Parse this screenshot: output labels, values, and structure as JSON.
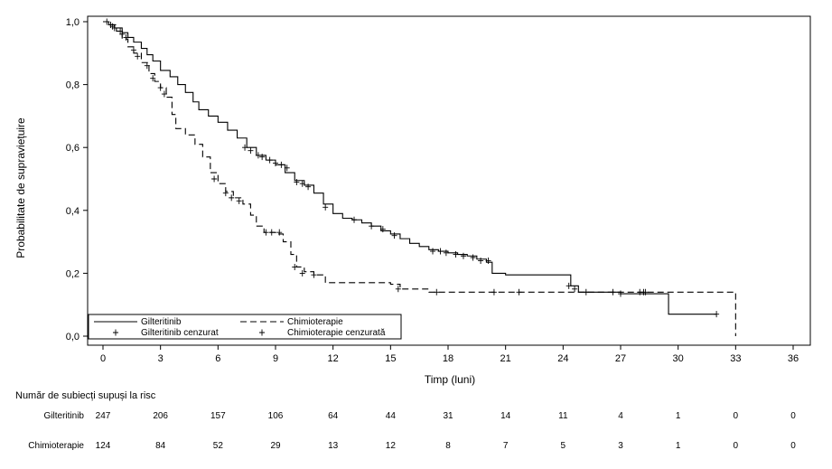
{
  "chart_data": {
    "type": "line",
    "subtype": "kaplan-meier",
    "title": "",
    "xlabel": "Timp (luni)",
    "ylabel": "Probabilitate de supraviețuire",
    "xlim": [
      0,
      36
    ],
    "ylim": [
      0,
      1
    ],
    "x_ticks": [
      0,
      3,
      6,
      9,
      12,
      15,
      18,
      21,
      24,
      27,
      30,
      33,
      36
    ],
    "y_ticks": [
      {
        "value": 0.0,
        "label": "0,0"
      },
      {
        "value": 0.2,
        "label": "0,2"
      },
      {
        "value": 0.4,
        "label": "0,4"
      },
      {
        "value": 0.6,
        "label": "0,6"
      },
      {
        "value": 0.8,
        "label": "0,8"
      },
      {
        "value": 1.0,
        "label": "1,0"
      }
    ],
    "grid": false,
    "legend_position": "bottom-left",
    "legend": {
      "line_gilt": "Gilteritinib",
      "line_chemo": "Chimioterapie",
      "cens_gilt": "Gilteritinib cenzurat",
      "cens_chemo": "Chimioterapie cenzurată"
    },
    "series": [
      {
        "name": "Gilteritinib",
        "style": "solid",
        "color": "#000000",
        "points": [
          [
            0,
            1.0
          ],
          [
            0.3,
            0.99
          ],
          [
            0.6,
            0.98
          ],
          [
            1.0,
            0.965
          ],
          [
            1.3,
            0.95
          ],
          [
            1.6,
            0.935
          ],
          [
            2.0,
            0.915
          ],
          [
            2.3,
            0.895
          ],
          [
            2.6,
            0.875
          ],
          [
            3.0,
            0.845
          ],
          [
            3.5,
            0.825
          ],
          [
            3.9,
            0.8
          ],
          [
            4.3,
            0.775
          ],
          [
            4.7,
            0.745
          ],
          [
            5.0,
            0.72
          ],
          [
            5.5,
            0.7
          ],
          [
            6.0,
            0.68
          ],
          [
            6.5,
            0.655
          ],
          [
            7.0,
            0.63
          ],
          [
            7.5,
            0.6
          ],
          [
            8.0,
            0.575
          ],
          [
            8.5,
            0.56
          ],
          [
            9.0,
            0.545
          ],
          [
            9.5,
            0.52
          ],
          [
            10.0,
            0.495
          ],
          [
            10.5,
            0.48
          ],
          [
            11.0,
            0.455
          ],
          [
            11.5,
            0.42
          ],
          [
            12.0,
            0.39
          ],
          [
            12.5,
            0.375
          ],
          [
            13.0,
            0.37
          ],
          [
            13.5,
            0.36
          ],
          [
            14.0,
            0.35
          ],
          [
            14.5,
            0.335
          ],
          [
            15.0,
            0.325
          ],
          [
            15.5,
            0.31
          ],
          [
            16.0,
            0.295
          ],
          [
            16.5,
            0.285
          ],
          [
            17.0,
            0.275
          ],
          [
            17.5,
            0.27
          ],
          [
            18.0,
            0.265
          ],
          [
            18.5,
            0.26
          ],
          [
            19.0,
            0.255
          ],
          [
            19.5,
            0.245
          ],
          [
            20.0,
            0.235
          ],
          [
            20.3,
            0.2
          ],
          [
            21.0,
            0.195
          ],
          [
            22.0,
            0.195
          ],
          [
            23.0,
            0.195
          ],
          [
            24.2,
            0.195
          ],
          [
            24.4,
            0.16
          ],
          [
            24.8,
            0.14
          ],
          [
            26.0,
            0.14
          ],
          [
            27.0,
            0.135
          ],
          [
            28.0,
            0.135
          ],
          [
            29.5,
            0.135
          ],
          [
            29.5,
            0.07
          ],
          [
            32.0,
            0.07
          ]
        ],
        "censored": [
          [
            0.2,
            1.0
          ],
          [
            0.5,
            0.985
          ],
          [
            0.9,
            0.97
          ],
          [
            7.4,
            0.6
          ],
          [
            7.7,
            0.59
          ],
          [
            8.1,
            0.575
          ],
          [
            8.3,
            0.57
          ],
          [
            8.7,
            0.56
          ],
          [
            9.0,
            0.55
          ],
          [
            9.3,
            0.545
          ],
          [
            9.6,
            0.535
          ],
          [
            10.1,
            0.49
          ],
          [
            10.4,
            0.485
          ],
          [
            10.7,
            0.475
          ],
          [
            11.6,
            0.41
          ],
          [
            13.1,
            0.37
          ],
          [
            14.0,
            0.35
          ],
          [
            14.6,
            0.34
          ],
          [
            15.2,
            0.32
          ],
          [
            17.2,
            0.27
          ],
          [
            17.6,
            0.27
          ],
          [
            17.9,
            0.265
          ],
          [
            18.4,
            0.26
          ],
          [
            18.8,
            0.255
          ],
          [
            19.3,
            0.25
          ],
          [
            19.7,
            0.24
          ],
          [
            20.1,
            0.24
          ],
          [
            24.3,
            0.16
          ],
          [
            24.6,
            0.15
          ],
          [
            27.0,
            0.135
          ],
          [
            28.0,
            0.14
          ],
          [
            28.3,
            0.14
          ],
          [
            32.0,
            0.07
          ]
        ]
      },
      {
        "name": "Chimioterapie",
        "style": "dashed",
        "color": "#000000",
        "points": [
          [
            0,
            1.0
          ],
          [
            0.4,
            0.99
          ],
          [
            0.7,
            0.97
          ],
          [
            1.0,
            0.945
          ],
          [
            1.3,
            0.92
          ],
          [
            1.6,
            0.9
          ],
          [
            2.0,
            0.87
          ],
          [
            2.4,
            0.835
          ],
          [
            2.7,
            0.81
          ],
          [
            3.0,
            0.79
          ],
          [
            3.3,
            0.76
          ],
          [
            3.6,
            0.705
          ],
          [
            3.8,
            0.66
          ],
          [
            4.3,
            0.64
          ],
          [
            4.8,
            0.61
          ],
          [
            5.2,
            0.57
          ],
          [
            5.6,
            0.52
          ],
          [
            6.0,
            0.485
          ],
          [
            6.4,
            0.46
          ],
          [
            6.8,
            0.44
          ],
          [
            7.3,
            0.42
          ],
          [
            7.7,
            0.385
          ],
          [
            8.0,
            0.35
          ],
          [
            8.4,
            0.33
          ],
          [
            9.0,
            0.325
          ],
          [
            9.4,
            0.3
          ],
          [
            9.8,
            0.26
          ],
          [
            10.1,
            0.22
          ],
          [
            10.5,
            0.205
          ],
          [
            11.0,
            0.195
          ],
          [
            11.6,
            0.17
          ],
          [
            12.5,
            0.17
          ],
          [
            13.5,
            0.17
          ],
          [
            15.0,
            0.165
          ],
          [
            15.5,
            0.15
          ],
          [
            16.6,
            0.15
          ],
          [
            17.0,
            0.14
          ],
          [
            18.0,
            0.14
          ],
          [
            21.0,
            0.14
          ],
          [
            24.0,
            0.14
          ],
          [
            27.0,
            0.14
          ],
          [
            30.0,
            0.14
          ],
          [
            33.0,
            0.14
          ],
          [
            33.0,
            0.0
          ]
        ],
        "censored": [
          [
            0.4,
            0.99
          ],
          [
            0.6,
            0.98
          ],
          [
            1.0,
            0.96
          ],
          [
            1.2,
            0.95
          ],
          [
            1.6,
            0.91
          ],
          [
            1.8,
            0.89
          ],
          [
            2.3,
            0.86
          ],
          [
            2.6,
            0.82
          ],
          [
            3.0,
            0.79
          ],
          [
            3.2,
            0.77
          ],
          [
            5.8,
            0.5
          ],
          [
            6.4,
            0.455
          ],
          [
            6.7,
            0.44
          ],
          [
            7.1,
            0.43
          ],
          [
            8.5,
            0.33
          ],
          [
            8.8,
            0.33
          ],
          [
            9.2,
            0.33
          ],
          [
            10.0,
            0.22
          ],
          [
            10.4,
            0.2
          ],
          [
            11.0,
            0.195
          ],
          [
            15.4,
            0.15
          ],
          [
            17.4,
            0.14
          ],
          [
            20.4,
            0.14
          ],
          [
            21.7,
            0.14
          ],
          [
            25.2,
            0.14
          ],
          [
            26.6,
            0.14
          ],
          [
            28.2,
            0.14
          ]
        ]
      }
    ],
    "risk_table": {
      "title": "Număr de subiecți supuși la risc",
      "times": [
        0,
        3,
        6,
        9,
        12,
        15,
        18,
        21,
        24,
        27,
        30,
        33,
        36
      ],
      "rows": [
        {
          "label": "Gilteritinib",
          "values": [
            "247",
            "206",
            "157",
            "106",
            "64",
            "44",
            "31",
            "14",
            "11",
            "4",
            "1",
            "0",
            "0"
          ]
        },
        {
          "label": "Chimioterapie",
          "values": [
            "124",
            "84",
            "52",
            "29",
            "13",
            "12",
            "8",
            "7",
            "5",
            "3",
            "1",
            "0",
            "0"
          ]
        }
      ]
    }
  }
}
